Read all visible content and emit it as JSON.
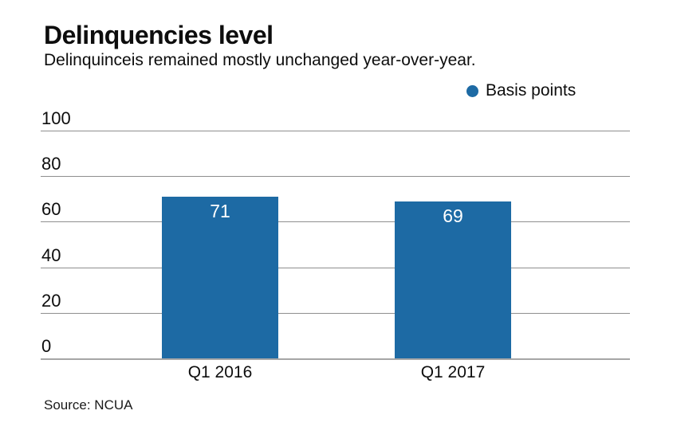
{
  "header": {
    "title": "Delinquencies level",
    "subtitle": "Delinquinceis remained mostly unchanged year-over-year."
  },
  "legend": {
    "label": "Basis points",
    "dot_color": "#1d6aa4"
  },
  "chart_data": {
    "type": "bar",
    "title": "Delinquencies level",
    "subtitle": "Delinquinceis remained mostly unchanged year-over-year.",
    "categories": [
      "Q1 2016",
      "Q1 2017"
    ],
    "series": [
      {
        "name": "Basis points",
        "values": [
          71,
          69
        ]
      }
    ],
    "xlabel": "",
    "ylabel": "",
    "ylim": [
      0,
      100
    ],
    "yticks": [
      0,
      20,
      40,
      60,
      80,
      100
    ],
    "grid": true,
    "legend_position": "top-right",
    "bar_color": "#1d6aa4",
    "value_label_color": "#ffffff",
    "gridline_color": "#8f8f8f"
  },
  "source": {
    "text": "Source: NCUA"
  }
}
